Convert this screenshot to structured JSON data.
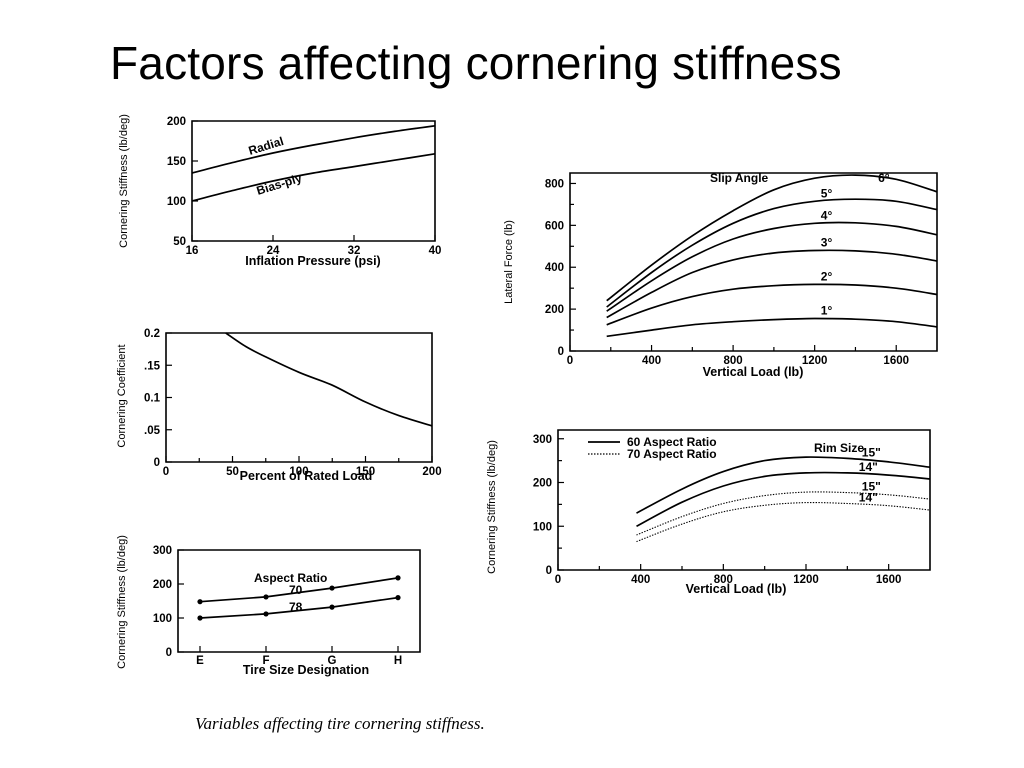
{
  "slide": {
    "title": "Factors affecting cornering stiffness",
    "caption": "Variables affecting tire cornering stiffness."
  },
  "chart_data": [
    {
      "id": "pressure",
      "type": "line",
      "ylabel": "Cornering Stiffness (lb/deg)",
      "xlabel": "Inflation Pressure (psi)",
      "xlim": [
        16,
        40
      ],
      "ylim": [
        50,
        200
      ],
      "xticks": [
        16,
        24,
        32,
        40
      ],
      "yticks": [
        50,
        100,
        150,
        200
      ],
      "series": [
        {
          "name": "Radial",
          "x": [
            16,
            20,
            24,
            28,
            32,
            36,
            40
          ],
          "y": [
            135,
            148,
            160,
            170,
            179,
            187,
            194
          ]
        },
        {
          "name": "Bias-ply",
          "x": [
            16,
            20,
            24,
            28,
            32,
            36,
            40
          ],
          "y": [
            100,
            113,
            125,
            135,
            143,
            151,
            159
          ]
        }
      ]
    },
    {
      "id": "load_coefficient",
      "type": "line",
      "ylabel": "Cornering Coefficient",
      "xlabel": "Percent of Rated Load",
      "xlim": [
        0,
        200
      ],
      "ylim": [
        0,
        0.2
      ],
      "xticks": [
        0,
        50,
        100,
        150,
        200
      ],
      "yticks": [
        0,
        0.05,
        0.1,
        0.15,
        0.2
      ],
      "ytick_labels": [
        "0",
        ".05",
        "0.1",
        ".15",
        "0.2"
      ],
      "series": [
        {
          "x": [
            45,
            60,
            75,
            100,
            125,
            150,
            175,
            200
          ],
          "y": [
            0.2,
            0.179,
            0.163,
            0.139,
            0.119,
            0.093,
            0.072,
            0.056
          ]
        }
      ]
    },
    {
      "id": "tire_size",
      "type": "line",
      "ylabel": "Cornering Stiffness (lb/deg)",
      "xlabel": "Tire Size Designation",
      "categories": [
        "E",
        "F",
        "G",
        "H"
      ],
      "ylim": [
        0,
        300
      ],
      "yticks": [
        0,
        100,
        200,
        300
      ],
      "legend_title": "Aspect Ratio",
      "series": [
        {
          "name": "70",
          "values": [
            148,
            162,
            188,
            218
          ]
        },
        {
          "name": "78",
          "values": [
            100,
            112,
            132,
            160
          ]
        }
      ]
    },
    {
      "id": "slip_angle",
      "type": "line",
      "ylabel": "Lateral Force (lb)",
      "xlabel": "Vertical Load (lb)",
      "xlim": [
        0,
        1800
      ],
      "ylim": [
        0,
        850
      ],
      "xticks": [
        0,
        400,
        800,
        1200,
        1600
      ],
      "yticks": [
        0,
        200,
        400,
        600,
        800
      ],
      "legend_title": "Slip Angle",
      "series": [
        {
          "name": "6°",
          "x": [
            180,
            400,
            600,
            800,
            1000,
            1200,
            1400,
            1600,
            1800
          ],
          "y": [
            240,
            410,
            550,
            670,
            770,
            825,
            840,
            820,
            760
          ]
        },
        {
          "name": "5°",
          "x": [
            180,
            400,
            600,
            800,
            1000,
            1200,
            1400,
            1600,
            1800
          ],
          "y": [
            210,
            375,
            505,
            610,
            680,
            715,
            725,
            715,
            675
          ]
        },
        {
          "name": "4°",
          "x": [
            180,
            400,
            600,
            800,
            1000,
            1200,
            1400,
            1600,
            1800
          ],
          "y": [
            190,
            335,
            450,
            535,
            585,
            610,
            612,
            595,
            555
          ]
        },
        {
          "name": "3°",
          "x": [
            180,
            400,
            600,
            800,
            1000,
            1200,
            1400,
            1600,
            1800
          ],
          "y": [
            160,
            280,
            375,
            435,
            468,
            480,
            478,
            462,
            430
          ]
        },
        {
          "name": "2°",
          "x": [
            180,
            400,
            600,
            800,
            1000,
            1200,
            1400,
            1600,
            1800
          ],
          "y": [
            125,
            205,
            260,
            295,
            312,
            318,
            315,
            300,
            270
          ]
        },
        {
          "name": "1°",
          "x": [
            180,
            400,
            600,
            800,
            1000,
            1200,
            1400,
            1600,
            1800
          ],
          "y": [
            70,
            100,
            125,
            140,
            150,
            155,
            152,
            140,
            115
          ]
        }
      ]
    },
    {
      "id": "rim_size",
      "type": "line",
      "ylabel": "Cornering Stiffness (lb/deg)",
      "xlabel": "Vertical Load (lb)",
      "xlim": [
        0,
        1800
      ],
      "ylim": [
        0,
        320
      ],
      "xticks": [
        0,
        400,
        800,
        1200,
        1600
      ],
      "yticks": [
        0,
        100,
        200,
        300
      ],
      "legend": [
        "60 Aspect Ratio",
        "70 Aspect Ratio"
      ],
      "legend_title": "Rim Size",
      "series": [
        {
          "name": "15\"",
          "style": "solid",
          "x": [
            380,
            600,
            800,
            1000,
            1200,
            1400,
            1600,
            1800
          ],
          "y": [
            130,
            185,
            225,
            250,
            258,
            255,
            247,
            235
          ]
        },
        {
          "name": "14\"",
          "style": "solid",
          "x": [
            380,
            600,
            800,
            1000,
            1200,
            1400,
            1600,
            1800
          ],
          "y": [
            100,
            155,
            192,
            214,
            222,
            222,
            217,
            208
          ]
        },
        {
          "name": "15\"",
          "style": "dotted",
          "x": [
            380,
            600,
            800,
            1000,
            1200,
            1400,
            1600,
            1800
          ],
          "y": [
            80,
            122,
            152,
            170,
            178,
            177,
            172,
            162
          ]
        },
        {
          "name": "14\"",
          "style": "dotted",
          "x": [
            380,
            600,
            800,
            1000,
            1200,
            1400,
            1600,
            1800
          ],
          "y": [
            65,
            105,
            133,
            148,
            154,
            152,
            147,
            137
          ]
        }
      ]
    }
  ]
}
